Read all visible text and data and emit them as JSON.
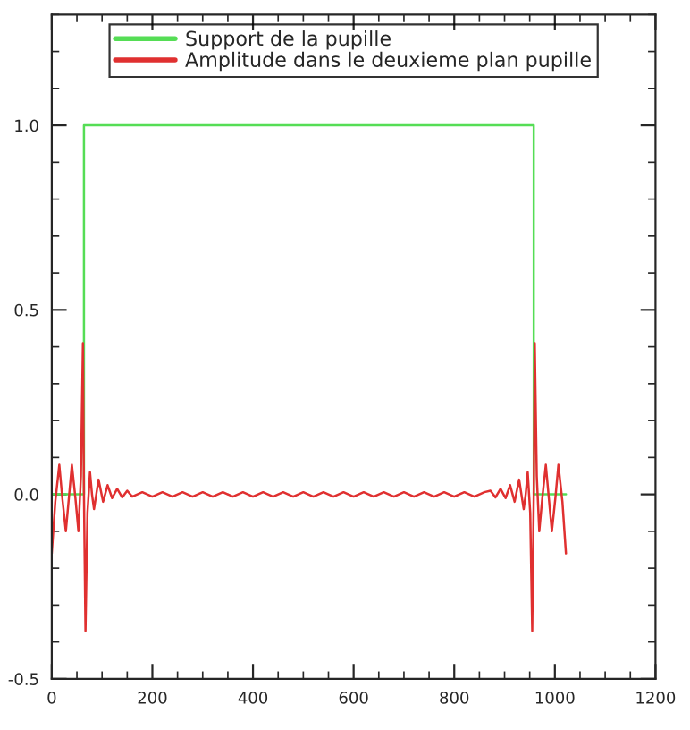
{
  "chart_data": {
    "type": "line",
    "xlim": [
      0,
      1200
    ],
    "ylim": [
      -0.5,
      1.3
    ],
    "xticks": [
      0,
      200,
      400,
      600,
      800,
      1000,
      1200
    ],
    "yticks": [
      {
        "value": -0.5,
        "label": "-0.5"
      },
      {
        "value": 0,
        "label": "0.0"
      },
      {
        "value": 0.5,
        "label": "0.5"
      },
      {
        "value": 1.0,
        "label": "1.0"
      }
    ],
    "grid": false,
    "legend": "top",
    "marker": "none",
    "line_style": "solid",
    "series": [
      {
        "name": "Support de la pupille",
        "color": "#55dd55",
        "x": [
          0,
          64,
          64,
          958,
          958,
          1022
        ],
        "values": [
          0,
          0,
          1,
          1,
          0,
          0
        ]
      },
      {
        "name": "Amplitude dans le deuxieme plan pupille",
        "color": "#e03030",
        "x": [
          0,
          7,
          15,
          21,
          28,
          34,
          40,
          47,
          53,
          58,
          62,
          64,
          67,
          71,
          76,
          80,
          84,
          93,
          102,
          111,
          120,
          130,
          140,
          150,
          160,
          180,
          200,
          220,
          240,
          260,
          280,
          300,
          320,
          340,
          360,
          380,
          400,
          420,
          440,
          460,
          480,
          500,
          520,
          540,
          560,
          580,
          600,
          620,
          640,
          660,
          680,
          700,
          720,
          740,
          760,
          780,
          800,
          820,
          840,
          860,
          872,
          882,
          892,
          902,
          911,
          920,
          929,
          938,
          942,
          946,
          951,
          955,
          958,
          960,
          964,
          969,
          975,
          982,
          988,
          994,
          1001,
          1007,
          1015,
          1022
        ],
        "values": [
          -0.16,
          -0.02,
          0.08,
          -0.01,
          -0.1,
          -0.01,
          0.08,
          -0.01,
          -0.1,
          0.05,
          0.41,
          0.0,
          -0.37,
          -0.05,
          0.06,
          0.0,
          -0.04,
          0.04,
          -0.02,
          0.025,
          -0.01,
          0.015,
          -0.008,
          0.01,
          -0.006,
          0.006,
          -0.006,
          0.006,
          -0.006,
          0.006,
          -0.006,
          0.006,
          -0.006,
          0.006,
          -0.006,
          0.006,
          -0.006,
          0.006,
          -0.006,
          0.006,
          -0.006,
          0.006,
          -0.006,
          0.006,
          -0.006,
          0.006,
          -0.006,
          0.006,
          -0.006,
          0.006,
          -0.006,
          0.006,
          -0.006,
          0.006,
          -0.006,
          0.006,
          -0.006,
          0.006,
          -0.006,
          0.006,
          0.01,
          -0.008,
          0.015,
          -0.01,
          0.025,
          -0.02,
          0.04,
          -0.04,
          0.0,
          0.06,
          -0.05,
          -0.37,
          0.0,
          0.41,
          0.05,
          -0.1,
          -0.01,
          0.08,
          -0.01,
          -0.1,
          -0.01,
          0.08,
          -0.02,
          -0.16
        ]
      }
    ]
  }
}
